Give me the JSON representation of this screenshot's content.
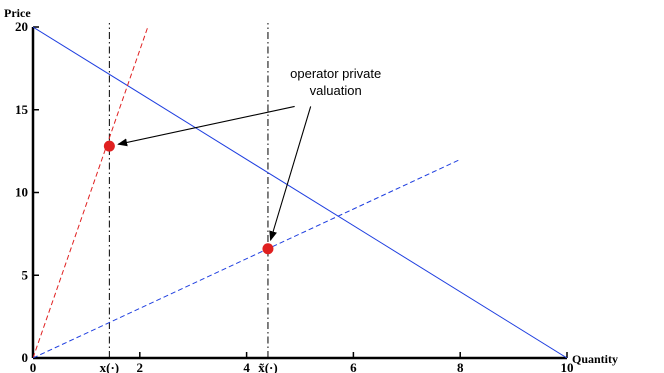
{
  "chart_data": {
    "type": "line",
    "xlabel": "Quantity",
    "ylabel": "Price",
    "xlim": [
      0,
      10
    ],
    "ylim": [
      0,
      20
    ],
    "x_ticks": [
      0,
      2,
      4,
      6,
      8,
      10
    ],
    "y_ticks": [
      0,
      5,
      10,
      15,
      20
    ],
    "grid": false,
    "legend": "none",
    "series": [
      {
        "style": "solid",
        "color": "#1f3fe0",
        "x": [
          0,
          10
        ],
        "y": [
          20,
          0
        ]
      },
      {
        "style": "dashed",
        "color": "#e02020",
        "x": [
          0,
          2.15
        ],
        "y": [
          0,
          20
        ]
      },
      {
        "style": "dashed",
        "color": "#1f3fe0",
        "x": [
          0,
          8
        ],
        "y": [
          0,
          12
        ]
      }
    ],
    "vlines": [
      {
        "x": 1.43,
        "style": "dashdot",
        "color": "#000000",
        "label": "x(·)"
      },
      {
        "x": 4.4,
        "style": "dashdot",
        "color": "#000000",
        "label": "x̃(·)"
      }
    ],
    "points": [
      {
        "x": 1.43,
        "y": 12.8,
        "color": "#e02020"
      },
      {
        "x": 4.4,
        "y": 6.6,
        "color": "#e02020"
      }
    ],
    "annotations": [
      {
        "lines": [
          "operator private",
          "valuation"
        ],
        "text_xy": [
          5.2,
          16.5
        ],
        "arrow_targets": [
          [
            1.43,
            12.8
          ],
          [
            4.4,
            6.6
          ]
        ],
        "arrow_starts": [
          [
            4.9,
            15.2
          ],
          [
            5.2,
            15.2
          ]
        ]
      }
    ]
  }
}
